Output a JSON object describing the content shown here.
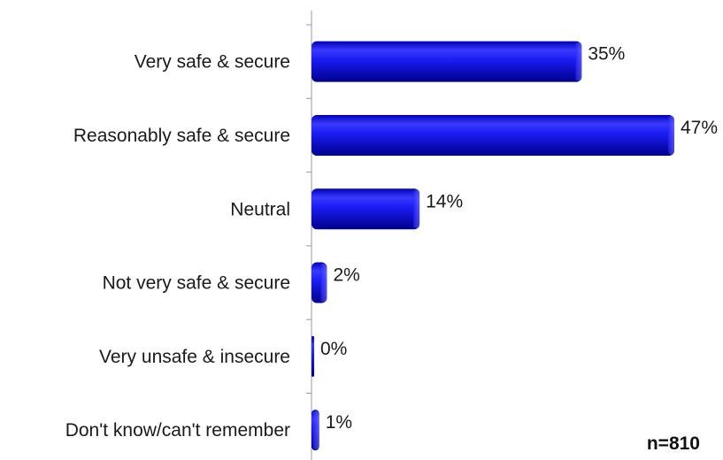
{
  "chart_data": {
    "type": "bar",
    "orientation": "horizontal",
    "categories": [
      "Very safe & secure",
      "Reasonably safe & secure",
      "Neutral",
      "Not very safe & secure",
      "Very unsafe & insecure",
      "Don't know/can't remember"
    ],
    "values": [
      35,
      47,
      14,
      2,
      0,
      1
    ],
    "value_labels": [
      "35%",
      "47%",
      "14%",
      "2%",
      "0%",
      "1%"
    ],
    "unit": "%",
    "xlim": [
      0,
      47
    ],
    "bar_color": "#1a1aff",
    "bar_color_dark": "#0000a0",
    "grid": false,
    "legend": "none"
  },
  "note": "n=810"
}
